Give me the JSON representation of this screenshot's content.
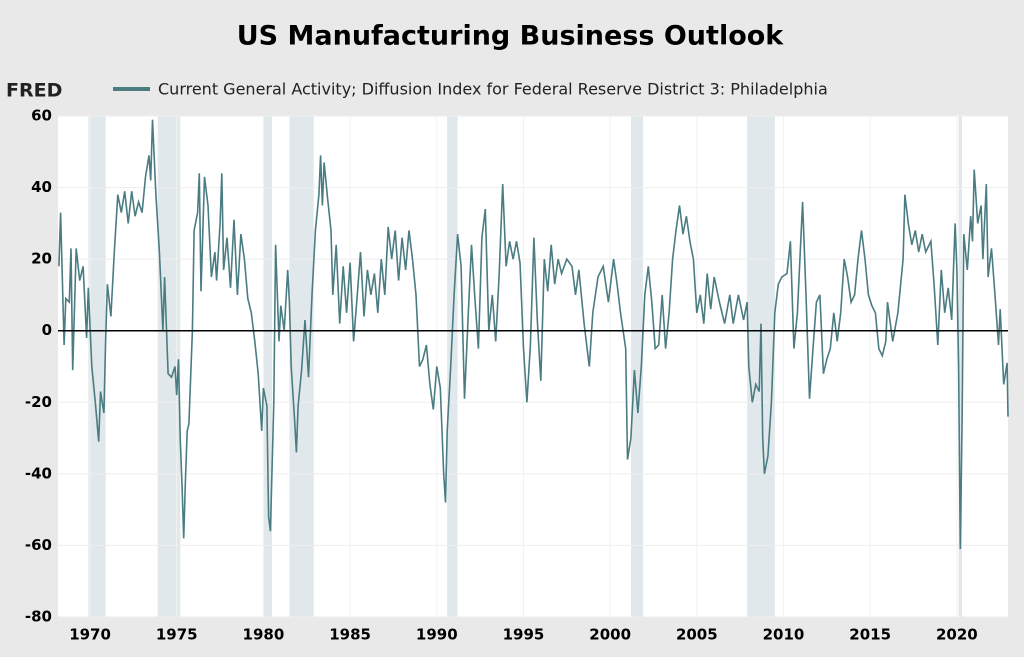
{
  "chart_data": {
    "type": "line",
    "title": "US Manufacturing Business Outlook",
    "logo": "FRED",
    "grid": true,
    "xlim": [
      1968.15,
      2022.95
    ],
    "ylim": [
      -80,
      60
    ],
    "xticks": [
      1970,
      1975,
      1980,
      1985,
      1990,
      1995,
      2000,
      2005,
      2010,
      2015,
      2020
    ],
    "yticks": [
      -80,
      -60,
      -40,
      -20,
      0,
      20,
      40,
      60
    ],
    "recessions": [
      [
        1969.9,
        1970.9
      ],
      [
        1973.9,
        1975.2
      ],
      [
        1980.0,
        1980.5
      ],
      [
        1981.5,
        1982.9
      ],
      [
        1990.6,
        1991.2
      ],
      [
        2001.2,
        2001.9
      ],
      [
        2007.9,
        2009.5
      ],
      [
        2020.1,
        2020.3
      ]
    ],
    "x": [
      1968.2,
      1968.3,
      1968.5,
      1968.6,
      1968.8,
      1968.9,
      1969.0,
      1969.2,
      1969.4,
      1969.6,
      1969.8,
      1969.9,
      1970.1,
      1970.3,
      1970.5,
      1970.6,
      1970.8,
      1970.9,
      1971.0,
      1971.2,
      1971.4,
      1971.6,
      1971.8,
      1972.0,
      1972.2,
      1972.4,
      1972.6,
      1972.8,
      1973.0,
      1973.2,
      1973.4,
      1973.5,
      1973.6,
      1973.8,
      1974.0,
      1974.2,
      1974.3,
      1974.5,
      1974.7,
      1974.9,
      1975.0,
      1975.1,
      1975.2,
      1975.3,
      1975.4,
      1975.5,
      1975.6,
      1975.7,
      1975.9,
      1976.0,
      1976.2,
      1976.3,
      1976.4,
      1976.6,
      1976.8,
      1977.0,
      1977.2,
      1977.3,
      1977.5,
      1977.6,
      1977.7,
      1977.9,
      1978.1,
      1978.3,
      1978.5,
      1978.7,
      1978.9,
      1979.1,
      1979.3,
      1979.5,
      1979.7,
      1979.9,
      1980.0,
      1980.2,
      1980.3,
      1980.4,
      1980.6,
      1980.7,
      1980.9,
      1981.0,
      1981.2,
      1981.4,
      1981.5,
      1981.6,
      1981.8,
      1981.9,
      1982.0,
      1982.2,
      1982.4,
      1982.6,
      1982.8,
      1983.0,
      1983.2,
      1983.3,
      1983.4,
      1983.5,
      1983.7,
      1983.9,
      1984.0,
      1984.2,
      1984.4,
      1984.6,
      1984.8,
      1985.0,
      1985.2,
      1985.4,
      1985.6,
      1985.8,
      1986.0,
      1986.2,
      1986.4,
      1986.6,
      1986.8,
      1987.0,
      1987.2,
      1987.4,
      1987.6,
      1987.8,
      1988.0,
      1988.2,
      1988.4,
      1988.6,
      1988.8,
      1989.0,
      1989.2,
      1989.4,
      1989.6,
      1989.8,
      1990.0,
      1990.2,
      1990.4,
      1990.5,
      1990.6,
      1990.8,
      1991.0,
      1991.2,
      1991.4,
      1991.6,
      1991.8,
      1992.0,
      1992.2,
      1992.4,
      1992.6,
      1992.8,
      1993.0,
      1993.2,
      1993.4,
      1993.6,
      1993.8,
      1994.0,
      1994.2,
      1994.4,
      1994.6,
      1994.8,
      1995.0,
      1995.2,
      1995.4,
      1995.6,
      1995.8,
      1996.0,
      1996.2,
      1996.4,
      1996.6,
      1996.8,
      1997.0,
      1997.2,
      1997.5,
      1997.8,
      1998.0,
      1998.2,
      1998.5,
      1998.8,
      1999.0,
      1999.3,
      1999.6,
      1999.9,
      2000.2,
      2000.4,
      2000.6,
      2000.9,
      2001.0,
      2001.2,
      2001.4,
      2001.6,
      2001.8,
      2002.0,
      2002.2,
      2002.4,
      2002.6,
      2002.8,
      2003.0,
      2003.2,
      2003.4,
      2003.6,
      2003.8,
      2004.0,
      2004.2,
      2004.4,
      2004.6,
      2004.8,
      2005.0,
      2005.2,
      2005.4,
      2005.6,
      2005.8,
      2006.0,
      2006.3,
      2006.6,
      2006.9,
      2007.1,
      2007.4,
      2007.7,
      2007.9,
      2008.0,
      2008.2,
      2008.4,
      2008.6,
      2008.7,
      2008.8,
      2008.9,
      2009.1,
      2009.3,
      2009.5,
      2009.7,
      2009.9,
      2010.2,
      2010.4,
      2010.6,
      2010.8,
      2011.1,
      2011.3,
      2011.5,
      2011.7,
      2011.9,
      2012.1,
      2012.3,
      2012.5,
      2012.7,
      2012.9,
      2013.1,
      2013.3,
      2013.5,
      2013.7,
      2013.9,
      2014.1,
      2014.3,
      2014.5,
      2014.7,
      2014.9,
      2015.1,
      2015.3,
      2015.5,
      2015.7,
      2015.9,
      2016.0,
      2016.3,
      2016.6,
      2016.9,
      2017.0,
      2017.2,
      2017.4,
      2017.6,
      2017.8,
      2018.0,
      2018.2,
      2018.5,
      2018.7,
      2018.9,
      2019.1,
      2019.3,
      2019.5,
      2019.7,
      2019.9,
      2020.0,
      2020.1,
      2020.2,
      2020.3,
      2020.4,
      2020.6,
      2020.8,
      2020.9,
      2021.0,
      2021.2,
      2021.4,
      2021.5,
      2021.7,
      2021.8,
      2022.0,
      2022.2,
      2022.4,
      2022.5,
      2022.7,
      2022.9,
      2022.95
    ],
    "series": [
      {
        "name": "Current General Activity; Diffusion Index for Federal Reserve District 3: Philadelphia",
        "color": "#4a7c82",
        "values": [
          18,
          33,
          -4,
          9,
          8,
          23,
          -11,
          23,
          14,
          18,
          -2,
          12,
          -10,
          -20,
          -31,
          -17,
          -23,
          -2,
          13,
          4,
          22,
          38,
          33,
          39,
          30,
          39,
          32,
          36,
          33,
          43,
          49,
          42,
          59,
          38,
          22,
          0,
          15,
          -12,
          -13,
          -10,
          -18,
          -8,
          -30,
          -43,
          -58,
          -42,
          -28,
          -26,
          0,
          28,
          33,
          44,
          11,
          43,
          35,
          15,
          22,
          14,
          30,
          44,
          17,
          26,
          12,
          31,
          10,
          27,
          20,
          9,
          5,
          -3,
          -12,
          -28,
          -16,
          -21,
          -52,
          -56,
          -20,
          24,
          -3,
          7,
          0,
          17,
          8,
          -10,
          -25,
          -34,
          -21,
          -11,
          3,
          -13,
          10,
          28,
          38,
          49,
          35,
          47,
          37,
          28,
          10,
          24,
          2,
          18,
          5,
          19,
          -3,
          9,
          22,
          4,
          17,
          10,
          16,
          5,
          20,
          10,
          29,
          20,
          28,
          14,
          26,
          17,
          28,
          20,
          10,
          -10,
          -8,
          -4,
          -15,
          -22,
          -10,
          -16,
          -40,
          -48,
          -28,
          -10,
          10,
          27,
          18,
          -19,
          3,
          24,
          9,
          -5,
          26,
          34,
          0,
          10,
          -3,
          16,
          41,
          18,
          25,
          20,
          25,
          19,
          -5,
          -20,
          -4,
          26,
          3,
          -14,
          20,
          11,
          24,
          13,
          20,
          16,
          20,
          18,
          10,
          17,
          2,
          -10,
          5,
          15,
          18,
          8,
          20,
          13,
          5,
          -5,
          -36,
          -30,
          -11,
          -23,
          -10,
          10,
          18,
          8,
          -5,
          -4,
          10,
          -5,
          5,
          20,
          28,
          35,
          27,
          32,
          25,
          20,
          5,
          10,
          2,
          16,
          6,
          15,
          8,
          2,
          10,
          2,
          10,
          3,
          8,
          -10,
          -20,
          -15,
          -17,
          2,
          -30,
          -40,
          -35,
          -20,
          5,
          13,
          15,
          16,
          25,
          -5,
          5,
          36,
          10,
          -19,
          -5,
          8,
          10,
          -12,
          -8,
          -5,
          5,
          -3,
          5,
          20,
          15,
          8,
          10,
          20,
          28,
          20,
          10,
          7,
          5,
          -5,
          -7,
          -3,
          8,
          -3,
          5,
          20,
          38,
          30,
          24,
          28,
          22,
          27,
          22,
          25,
          12,
          -4,
          17,
          5,
          12,
          3,
          30,
          17,
          -10,
          -61,
          -25,
          27,
          17,
          32,
          25,
          45,
          30,
          35,
          20,
          41,
          15,
          23,
          10,
          -4,
          6,
          -15,
          -9,
          -24
        ]
      }
    ]
  }
}
